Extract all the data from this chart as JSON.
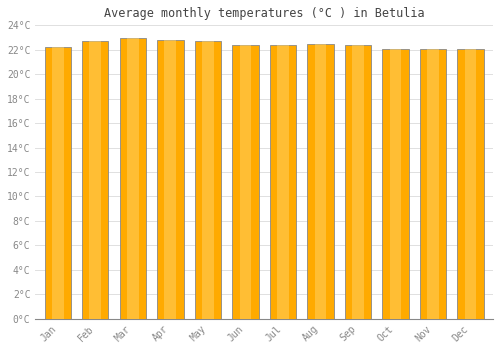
{
  "title": "Average monthly temperatures (°C ) in Betulia",
  "months": [
    "Jan",
    "Feb",
    "Mar",
    "Apr",
    "May",
    "Jun",
    "Jul",
    "Aug",
    "Sep",
    "Oct",
    "Nov",
    "Dec"
  ],
  "temperatures": [
    22.2,
    22.7,
    23.0,
    22.8,
    22.7,
    22.4,
    22.4,
    22.5,
    22.4,
    22.1,
    22.1,
    22.1
  ],
  "bar_color": "#FFAA00",
  "bar_edge_color": "#888888",
  "background_color": "#FFFFFF",
  "grid_color": "#E0E0E0",
  "tick_label_color": "#888888",
  "title_color": "#444444",
  "ylim": [
    0,
    24
  ],
  "ytick_values": [
    0,
    2,
    4,
    6,
    8,
    10,
    12,
    14,
    16,
    18,
    20,
    22,
    24
  ],
  "bar_width": 0.7,
  "figsize": [
    5.0,
    3.5
  ],
  "dpi": 100
}
